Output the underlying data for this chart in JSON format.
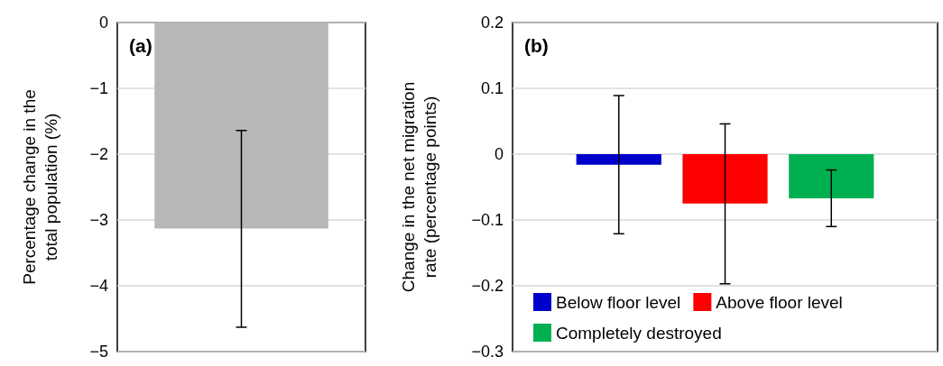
{
  "chart_data": [
    {
      "type": "bar",
      "title": "(a)",
      "ylabel": "Percentage change in the total population (%)",
      "categories": [
        null
      ],
      "series": [
        {
          "color": "#b7b7b7",
          "values": [
            -3.13
          ],
          "errors": [
            [
              -4.63,
              -1.64
            ]
          ]
        }
      ],
      "ylim": [
        -5,
        0
      ],
      "yticks": [
        {
          "value": -5,
          "label": "−5"
        },
        {
          "value": -4,
          "label": "−4"
        },
        {
          "value": -3,
          "label": "−3"
        },
        {
          "value": -2,
          "label": "−2"
        },
        {
          "value": -1,
          "label": "−1"
        },
        0
      ],
      "grid": "y",
      "tick_labels": "y"
    },
    {
      "type": "bar",
      "title": "(b)",
      "ylabel": "Change in the net migration rate (percentage points)",
      "categories": [
        null
      ],
      "series": [
        {
          "name": "Below floor level",
          "color": "#0000cc",
          "values": [
            -0.016
          ],
          "errors": [
            [
              -0.121,
              0.089
            ]
          ]
        },
        {
          "name": "Above floor level",
          "color": "#ff0000",
          "values": [
            -0.075
          ],
          "errors": [
            [
              -0.197,
              0.046
            ]
          ]
        },
        {
          "name": "Completely destroyed",
          "color": "#00b050",
          "values": [
            -0.067
          ],
          "errors": [
            [
              -0.11,
              -0.024
            ]
          ]
        }
      ],
      "ylim": [
        -0.3,
        0.2
      ],
      "yticks": [
        {
          "value": -0.3,
          "label": "−0.3"
        },
        {
          "value": -0.2,
          "label": "−0.2"
        },
        {
          "value": -0.1,
          "label": "−0.1"
        },
        0,
        0.1,
        0.2
      ],
      "grid": "y",
      "legend": "bottom left",
      "tick_labels": "y"
    }
  ]
}
